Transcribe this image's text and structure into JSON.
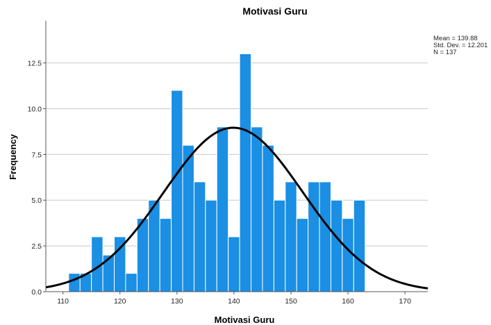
{
  "chart_data": {
    "type": "bar",
    "title": "Motivasi Guru",
    "xlabel": "Motivasi Guru",
    "ylabel": "Frequency",
    "xlim": [
      107,
      174
    ],
    "ylim": [
      0,
      14.8
    ],
    "grid": true,
    "x_ticks": [
      110,
      120,
      130,
      140,
      150,
      160,
      170
    ],
    "x_tick_labels": [
      "110",
      "120",
      "130",
      "140",
      "150",
      "160",
      "170"
    ],
    "y_ticks": [
      0,
      2.5,
      5,
      7.5,
      10,
      12.5
    ],
    "y_tick_labels": [
      "0.0",
      "2.5",
      "5.0",
      "7.5",
      "10.0",
      "12.5"
    ],
    "bin_width": 2,
    "bin_start": 111,
    "values": [
      1,
      1,
      3,
      2,
      3,
      1,
      4,
      5,
      4,
      11,
      8,
      6,
      5,
      9,
      3,
      13,
      9,
      8,
      5,
      6,
      4,
      6,
      6,
      5,
      4,
      5
    ],
    "normal_curve": {
      "mean": 139.88,
      "std_dev": 12.201,
      "n": 137
    },
    "stats_legend": {
      "position": "top-right",
      "lines": [
        "Mean = 139.88",
        "Std. Dev. = 12.201",
        "N = 137"
      ]
    },
    "colors": {
      "bar": "#1a8fe3",
      "curve": "#000000",
      "grid": "#c8c8c8"
    }
  }
}
